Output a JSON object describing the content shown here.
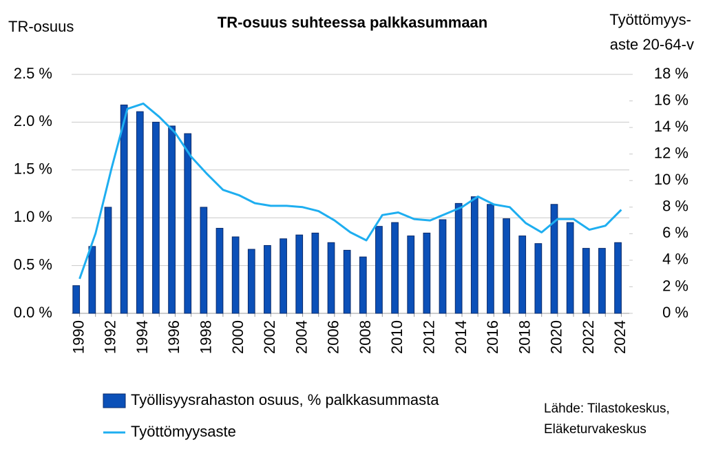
{
  "chart_data": {
    "type": "bar_line",
    "title": "TR-osuus suhteessa palkkasummaan",
    "y_label": "TR-osuus",
    "y2_label": [
      "Työttömyys-",
      "aste 20-64-v"
    ],
    "source": [
      "Lähde: Tilastokeskus,",
      "Eläketurvakeskus"
    ],
    "categories": [
      "1990",
      null,
      "1992",
      null,
      "1994",
      null,
      "1996",
      null,
      "1998",
      null,
      "2000",
      null,
      "2002",
      null,
      "2004",
      null,
      "2006",
      null,
      "2008",
      null,
      "2010",
      null,
      "2012",
      null,
      "2014",
      null,
      "2016",
      null,
      "2018",
      null,
      "2020",
      null,
      "2022",
      null,
      "2024"
    ],
    "series": [
      {
        "name": "Työllisyysrahaston osuus, % palkkasummasta",
        "type": "bar",
        "color": "#0b50b8",
        "axis": "y",
        "values": [
          0.29,
          0.7,
          1.11,
          2.18,
          2.11,
          2.0,
          1.96,
          1.88,
          1.11,
          0.89,
          0.8,
          0.67,
          0.71,
          0.78,
          0.82,
          0.84,
          0.74,
          0.66,
          0.59,
          0.91,
          0.95,
          0.81,
          0.84,
          0.98,
          1.15,
          1.22,
          1.14,
          0.99,
          0.81,
          0.73,
          1.14,
          0.95,
          0.68,
          0.68,
          0.74
        ]
      },
      {
        "name": "Työttömyysaste",
        "type": "line",
        "color": "#1eaef0",
        "axis": "y2",
        "values": [
          2.6,
          6.0,
          10.9,
          15.4,
          15.8,
          14.8,
          13.6,
          11.8,
          10.5,
          9.3,
          8.9,
          8.3,
          8.1,
          8.1,
          8.0,
          7.7,
          7.0,
          6.1,
          5.5,
          7.4,
          7.6,
          7.1,
          7.0,
          7.5,
          8.0,
          8.8,
          8.2,
          8.0,
          6.8,
          6.1,
          7.1,
          7.1,
          6.3,
          6.6,
          7.8
        ]
      }
    ],
    "ylim": [
      0,
      2.5
    ],
    "yticks": [
      {
        "value": 0,
        "label": "0.0 %"
      },
      {
        "value": 0.5,
        "label": "0.5 %"
      },
      {
        "value": 1,
        "label": "1.0 %"
      },
      {
        "value": 1.5,
        "label": "1.5 %"
      },
      {
        "value": 2,
        "label": "2.0 %"
      },
      {
        "value": 2.5,
        "label": "2.5 %"
      }
    ],
    "y2lim": [
      0,
      18
    ],
    "y2ticks": [
      {
        "value": 0,
        "label": "0 %"
      },
      {
        "value": 2,
        "label": "2 %"
      },
      {
        "value": 4,
        "label": "4 %"
      },
      {
        "value": 6,
        "label": "6 %"
      },
      {
        "value": 8,
        "label": "8 %"
      },
      {
        "value": 10,
        "label": "10 %"
      },
      {
        "value": 12,
        "label": "12 %"
      },
      {
        "value": 14,
        "label": "14 %"
      },
      {
        "value": 16,
        "label": "16 %"
      },
      {
        "value": 18,
        "label": "18 %"
      }
    ],
    "grid": true
  }
}
